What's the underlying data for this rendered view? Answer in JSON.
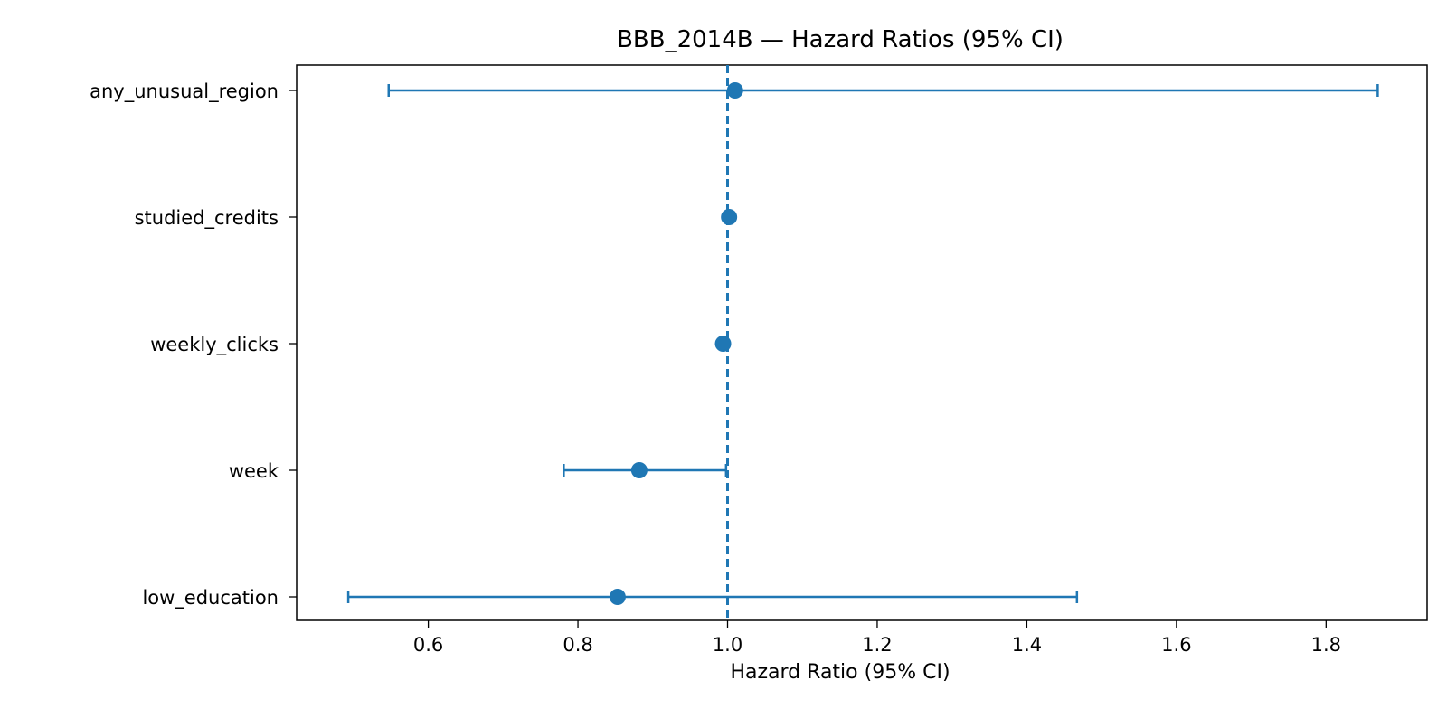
{
  "chart_data": {
    "type": "forest",
    "title": "BBB_2014B — Hazard Ratios (95% CI)",
    "xlabel": "Hazard Ratio (95% CI)",
    "ylabel": "",
    "xlim": [
      0.424,
      1.935
    ],
    "xticks": [
      0.6,
      0.8,
      1.0,
      1.2,
      1.4,
      1.6,
      1.8
    ],
    "xtick_labels": [
      "0.6",
      "0.8",
      "1.0",
      "1.2",
      "1.4",
      "1.6",
      "1.8"
    ],
    "reference_line": 1.0,
    "grid": false,
    "legend": "none",
    "series_color": "#1f77b4",
    "categories": [
      "any_unusual_region",
      "studied_credits",
      "weekly_clicks",
      "week",
      "low_education"
    ],
    "estimates": [
      1.01,
      1.002,
      0.994,
      0.882,
      0.853
    ],
    "ci_lower": [
      0.547,
      1.002,
      0.994,
      0.781,
      0.493
    ],
    "ci_upper": [
      1.869,
      1.002,
      0.994,
      0.998,
      1.467
    ]
  }
}
